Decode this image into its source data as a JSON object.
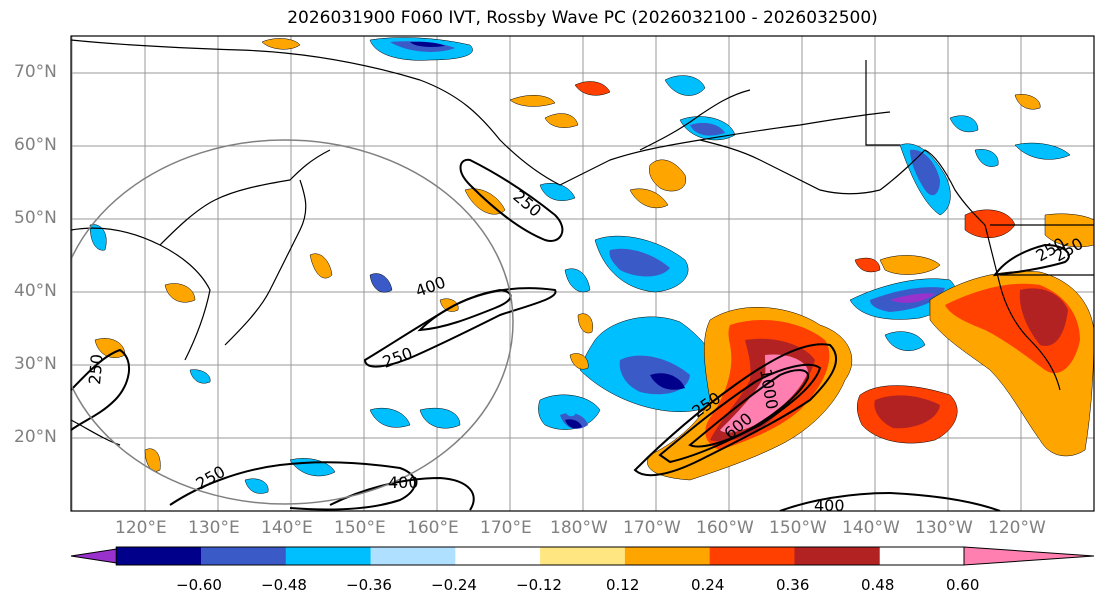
{
  "title": "2026031900 F060 IVT, Rossby Wave PC (2026032100 - 2026032500)",
  "lat_labels": [
    "70°N",
    "60°N",
    "50°N",
    "40°N",
    "30°N",
    "20°N"
  ],
  "lon_labels": [
    "120°E",
    "130°E",
    "140°E",
    "150°E",
    "160°E",
    "170°E",
    "180°W",
    "170°W",
    "160°W",
    "150°W",
    "140°W",
    "130°W",
    "120°W"
  ],
  "colorbar": {
    "ticks": [
      "−0.60",
      "−0.48",
      "−0.36",
      "−0.24",
      "−0.12",
      "0.12",
      "0.24",
      "0.36",
      "0.48",
      "0.60"
    ],
    "colors": [
      "#9932CC",
      "#00008B",
      "#3A5BC7",
      "#00BFFF",
      "#B0E0FF",
      "#FFFFFF",
      "#FFE680",
      "#FFA500",
      "#FF4000",
      "#B22222",
      "#FF80B0"
    ]
  },
  "contour_labels": [
    "250",
    "400",
    "250",
    "250",
    "250",
    "400",
    "250",
    "250",
    "400",
    "600",
    "1000",
    "250"
  ]
}
